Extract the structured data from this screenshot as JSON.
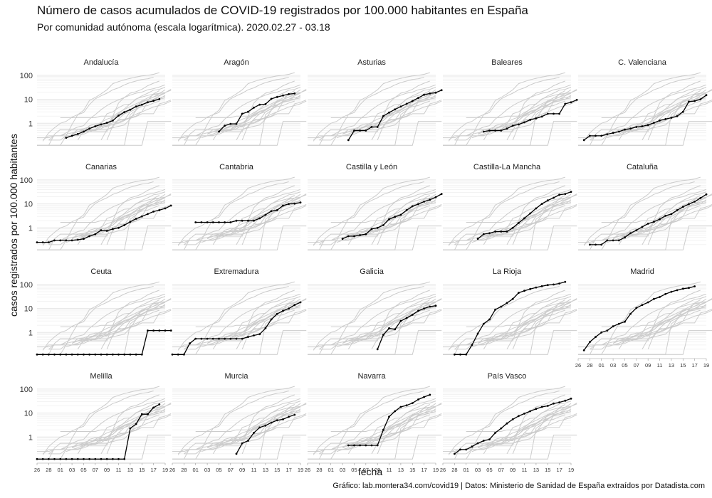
{
  "title": "Número de casos acumulados de COVID-19 registrados por 100.000 habitantes en España",
  "subtitle": "Por comunidad autónoma (escala logarítmica). 2020.02.27 - 03.18",
  "caption": "Gráfico: lab.montera34.com/covid19 | Datos: Ministerio de Sanidad de España extraídos por Datadista.com",
  "chart_data": {
    "type": "line",
    "xlabel": "fecha",
    "ylabel": "casos registrados por 100.000 habitantes",
    "yscale": "log",
    "ylim": [
      0.1,
      150
    ],
    "y_ticks": [
      1,
      10,
      100
    ],
    "x_range": [
      "2020-02-26",
      "2020-03-19"
    ],
    "x_tick_labels": [
      "26",
      "28",
      "01",
      "03",
      "05",
      "07",
      "09",
      "11",
      "13",
      "15",
      "17",
      "19"
    ],
    "facet_grid": "5 columns, 4 rows; highlighted region in black, other regions in grey",
    "colors": {
      "highlight": "#000000",
      "background": "#cccccc",
      "grid": "#e6e6e6"
    },
    "series": [
      {
        "name": "Andalucía",
        "start": "2020-03-02",
        "values": [
          0.25,
          0.3,
          0.36,
          0.45,
          0.6,
          0.75,
          0.9,
          1.05,
          1.3,
          2.1,
          2.9,
          3.7,
          5,
          6,
          7.5,
          8.7,
          10.2
        ]
      },
      {
        "name": "Aragón",
        "start": "2020-03-05",
        "values": [
          0.45,
          0.8,
          0.95,
          0.95,
          2.5,
          3,
          4.5,
          6,
          6.3,
          10.5,
          12.5,
          14.5,
          16.5,
          17.5
        ]
      },
      {
        "name": "Asturias",
        "start": "2020-03-04",
        "values": [
          0.2,
          0.5,
          0.5,
          0.5,
          0.7,
          0.7,
          2,
          2.8,
          3.8,
          5,
          6.5,
          8.5,
          11.5,
          15.5,
          17.5,
          19,
          24
        ]
      },
      {
        "name": "Baleares",
        "start": "2020-03-04",
        "values": [
          0.45,
          0.5,
          0.5,
          0.5,
          0.6,
          0.8,
          0.9,
          1.1,
          1.4,
          1.6,
          1.9,
          2.5,
          2.5,
          2.5,
          6.5,
          7.5,
          9.5
        ]
      },
      {
        "name": "C. Valenciana",
        "start": "2020-02-27",
        "values": [
          0.2,
          0.3,
          0.3,
          0.3,
          0.35,
          0.4,
          0.45,
          0.55,
          0.6,
          0.7,
          0.75,
          0.85,
          1.05,
          1.3,
          1.5,
          1.7,
          2,
          3,
          8,
          8.5,
          10,
          15
        ]
      },
      {
        "name": "Canarias",
        "start": "2020-02-26",
        "values": [
          0.25,
          0.25,
          0.25,
          0.3,
          0.3,
          0.3,
          0.3,
          0.32,
          0.35,
          0.45,
          0.55,
          0.8,
          0.75,
          0.9,
          1.0,
          1.3,
          1.8,
          2.4,
          3,
          3.8,
          4.8,
          5.5,
          6.5,
          8.5
        ]
      },
      {
        "name": "Cantabria",
        "start": "2020-03-01",
        "values": [
          1.7,
          1.7,
          1.7,
          1.7,
          1.7,
          1.7,
          1.7,
          2,
          2,
          2,
          2,
          2.5,
          3.5,
          5,
          5.5,
          8.5,
          10,
          10.3,
          11.5
        ]
      },
      {
        "name": "Castilla y León",
        "start": "2020-03-03",
        "values": [
          0.35,
          0.45,
          0.45,
          0.5,
          0.55,
          0.9,
          1.0,
          1.3,
          2.3,
          2.9,
          3.5,
          5.5,
          8,
          9.8,
          12.5,
          15,
          19,
          26
        ]
      },
      {
        "name": "Castilla-La Mancha",
        "start": "2020-03-03",
        "values": [
          0.35,
          0.55,
          0.6,
          0.7,
          0.7,
          0.7,
          1.0,
          1.6,
          2.5,
          4,
          6.5,
          10,
          14,
          18,
          24,
          26,
          32
        ]
      },
      {
        "name": "Cataluña",
        "start": "2020-02-28",
        "values": [
          0.2,
          0.2,
          0.2,
          0.3,
          0.3,
          0.3,
          0.4,
          0.6,
          0.8,
          1.1,
          1.5,
          1.8,
          2.3,
          3.2,
          3.8,
          5.5,
          7.5,
          9.8,
          12.5,
          17.5,
          25
        ]
      },
      {
        "name": "Ceuta",
        "start": "2020-02-26",
        "values": [
          0.12,
          0.12,
          0.12,
          0.12,
          0.12,
          0.12,
          0.12,
          0.12,
          0.12,
          0.12,
          0.12,
          0.12,
          0.12,
          0.12,
          0.12,
          0.12,
          0.12,
          0.12,
          0.12,
          1.2,
          1.2,
          1.2,
          1.2,
          1.2
        ]
      },
      {
        "name": "Extremadura",
        "start": "2020-02-26",
        "values": [
          0.12,
          0.12,
          0.12,
          0.35,
          0.55,
          0.55,
          0.55,
          0.55,
          0.55,
          0.55,
          0.55,
          0.55,
          0.55,
          0.65,
          0.75,
          0.85,
          1.5,
          3.5,
          6,
          8,
          10,
          14,
          18
        ]
      },
      {
        "name": "Galicia",
        "start": "2020-03-09",
        "values": [
          0.2,
          0.8,
          1.5,
          1.35,
          3,
          4,
          5.5,
          8,
          10,
          12,
          13
        ]
      },
      {
        "name": "La Rioja",
        "start": "2020-02-28",
        "values": [
          0.12,
          0.12,
          0.12,
          0.3,
          0.9,
          2.3,
          3.5,
          9,
          12,
          17,
          25,
          45,
          55,
          65,
          75,
          85,
          95,
          100,
          110,
          130
        ]
      },
      {
        "name": "Madrid",
        "start": "2020-02-27",
        "values": [
          0.18,
          0.4,
          0.65,
          1.0,
          1.2,
          1.8,
          2.3,
          2.8,
          6,
          10.5,
          14,
          18,
          25,
          30,
          40,
          50,
          58,
          67,
          72,
          84
        ]
      },
      {
        "name": "Melilla",
        "start": "2020-02-26",
        "values": [
          0.12,
          0.12,
          0.12,
          0.12,
          0.12,
          0.12,
          0.12,
          0.12,
          0.12,
          0.12,
          0.12,
          0.12,
          0.12,
          0.12,
          0.12,
          0.12,
          2.3,
          3.5,
          9,
          9,
          17,
          23
        ]
      },
      {
        "name": "Murcia",
        "start": "2020-03-08",
        "values": [
          0.2,
          0.55,
          0.7,
          1.5,
          2.5,
          3,
          4,
          5,
          5.5,
          7,
          8.5
        ]
      },
      {
        "name": "Navarra",
        "start": "2020-03-04",
        "values": [
          0.45,
          0.45,
          0.45,
          0.45,
          0.45,
          0.45,
          2,
          7,
          12,
          18,
          21,
          26,
          37,
          47,
          58
        ]
      },
      {
        "name": "País Vasco",
        "start": "2020-02-28",
        "values": [
          0.2,
          0.3,
          0.3,
          0.4,
          0.55,
          0.7,
          0.8,
          1.5,
          2.3,
          3.7,
          5.5,
          7.5,
          9.5,
          12,
          15,
          18,
          20,
          25,
          28,
          33,
          40
        ]
      }
    ]
  }
}
